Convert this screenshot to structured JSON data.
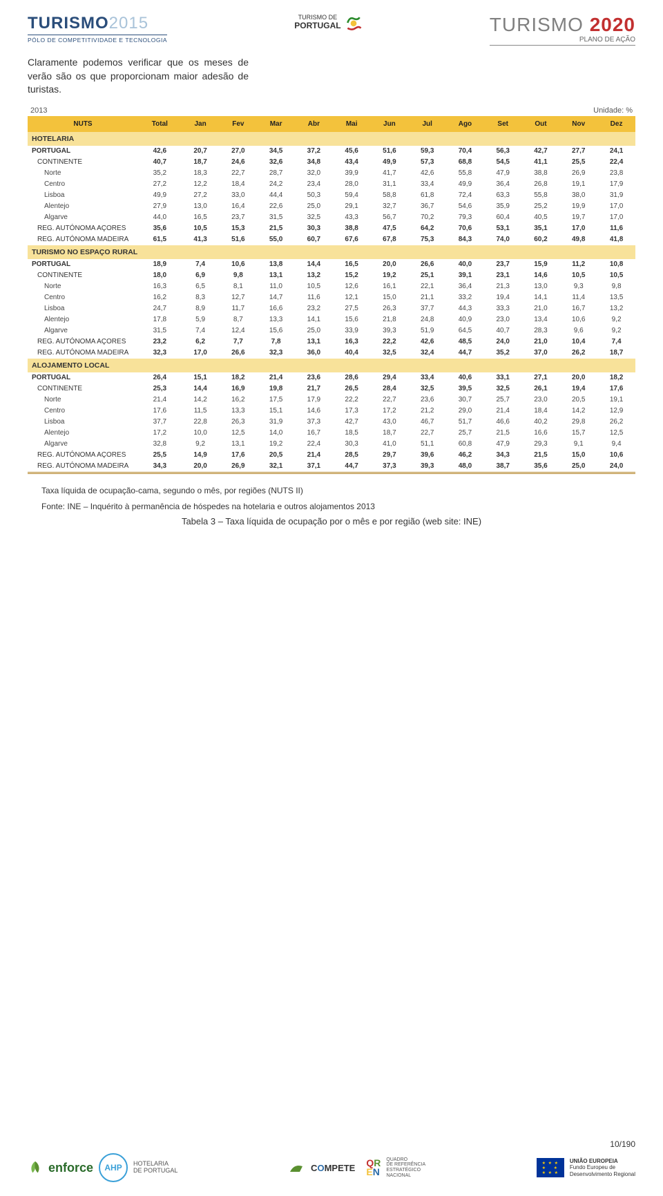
{
  "header": {
    "logo_left_a": "TURISMO",
    "logo_left_b": "2015",
    "logo_left_sub": "PÓLO DE COMPETITIVIDADE E TECNOLOGIA",
    "logo_center_a": "TURISMO DE",
    "logo_center_b": "PORTUGAL",
    "logo_right_a": "TURISMO ",
    "logo_right_b": "2020",
    "logo_right_sub": "PLANO DE AÇÃO"
  },
  "paragraph": "Claramente podemos verificar que os meses de verão são os que proporcionam maior adesão de turistas.",
  "table": {
    "year": "2013",
    "unit": "Unidade: %",
    "columns": [
      "NUTS",
      "Total",
      "Jan",
      "Fev",
      "Mar",
      "Abr",
      "Mai",
      "Jun",
      "Jul",
      "Ago",
      "Set",
      "Out",
      "Nov",
      "Dez"
    ],
    "sections": [
      {
        "title": "HOTELARIA",
        "rows": [
          {
            "label": "PORTUGAL",
            "bold": true,
            "vals": [
              "42,6",
              "20,7",
              "27,0",
              "34,5",
              "37,2",
              "45,6",
              "51,6",
              "59,3",
              "70,4",
              "56,3",
              "42,7",
              "27,7",
              "24,1"
            ]
          },
          {
            "label": "CONTINENTE",
            "bold": true,
            "indent": "group",
            "vals": [
              "40,7",
              "18,7",
              "24,6",
              "32,6",
              "34,8",
              "43,4",
              "49,9",
              "57,3",
              "68,8",
              "54,5",
              "41,1",
              "25,5",
              "22,4"
            ]
          },
          {
            "label": "Norte",
            "indent": "indent",
            "vals": [
              "35,2",
              "18,3",
              "22,7",
              "28,7",
              "32,0",
              "39,9",
              "41,7",
              "42,6",
              "55,8",
              "47,9",
              "38,8",
              "26,9",
              "23,8"
            ]
          },
          {
            "label": "Centro",
            "indent": "indent",
            "vals": [
              "27,2",
              "12,2",
              "18,4",
              "24,2",
              "23,4",
              "28,0",
              "31,1",
              "33,4",
              "49,9",
              "36,4",
              "26,8",
              "19,1",
              "17,9"
            ]
          },
          {
            "label": "Lisboa",
            "indent": "indent",
            "vals": [
              "49,9",
              "27,2",
              "33,0",
              "44,4",
              "50,3",
              "59,4",
              "58,8",
              "61,8",
              "72,4",
              "63,3",
              "55,8",
              "38,0",
              "31,9"
            ]
          },
          {
            "label": "Alentejo",
            "indent": "indent",
            "vals": [
              "27,9",
              "13,0",
              "16,4",
              "22,6",
              "25,0",
              "29,1",
              "32,7",
              "36,7",
              "54,6",
              "35,9",
              "25,2",
              "19,9",
              "17,0"
            ]
          },
          {
            "label": "Algarve",
            "indent": "indent",
            "vals": [
              "44,0",
              "16,5",
              "23,7",
              "31,5",
              "32,5",
              "43,3",
              "56,7",
              "70,2",
              "79,3",
              "60,4",
              "40,5",
              "19,7",
              "17,0"
            ]
          },
          {
            "label": "REG. AUTÓNOMA AÇORES",
            "bold": true,
            "indent": "group",
            "vals": [
              "35,6",
              "10,5",
              "15,3",
              "21,5",
              "30,3",
              "38,8",
              "47,5",
              "64,2",
              "70,6",
              "53,1",
              "35,1",
              "17,0",
              "11,6"
            ]
          },
          {
            "label": "REG. AUTÓNOMA MADEIRA",
            "bold": true,
            "indent": "group",
            "vals": [
              "61,5",
              "41,3",
              "51,6",
              "55,0",
              "60,7",
              "67,6",
              "67,8",
              "75,3",
              "84,3",
              "74,0",
              "60,2",
              "49,8",
              "41,8"
            ]
          }
        ]
      },
      {
        "title": "TURISMO NO ESPAÇO RURAL",
        "rows": [
          {
            "label": "PORTUGAL",
            "bold": true,
            "vals": [
              "18,9",
              "7,4",
              "10,6",
              "13,8",
              "14,4",
              "16,5",
              "20,0",
              "26,6",
              "40,0",
              "23,7",
              "15,9",
              "11,2",
              "10,8"
            ]
          },
          {
            "label": "CONTINENTE",
            "bold": true,
            "indent": "group",
            "vals": [
              "18,0",
              "6,9",
              "9,8",
              "13,1",
              "13,2",
              "15,2",
              "19,2",
              "25,1",
              "39,1",
              "23,1",
              "14,6",
              "10,5",
              "10,5"
            ]
          },
          {
            "label": "Norte",
            "indent": "indent",
            "vals": [
              "16,3",
              "6,5",
              "8,1",
              "11,0",
              "10,5",
              "12,6",
              "16,1",
              "22,1",
              "36,4",
              "21,3",
              "13,0",
              "9,3",
              "9,8"
            ]
          },
          {
            "label": "Centro",
            "indent": "indent",
            "vals": [
              "16,2",
              "8,3",
              "12,7",
              "14,7",
              "11,6",
              "12,1",
              "15,0",
              "21,1",
              "33,2",
              "19,4",
              "14,1",
              "11,4",
              "13,5"
            ]
          },
          {
            "label": "Lisboa",
            "indent": "indent",
            "vals": [
              "24,7",
              "8,9",
              "11,7",
              "16,6",
              "23,2",
              "27,5",
              "26,3",
              "37,7",
              "44,3",
              "33,3",
              "21,0",
              "16,7",
              "13,2"
            ]
          },
          {
            "label": "Alentejo",
            "indent": "indent",
            "vals": [
              "17,8",
              "5,9",
              "8,7",
              "13,3",
              "14,1",
              "15,6",
              "21,8",
              "24,8",
              "40,9",
              "23,0",
              "13,4",
              "10,6",
              "9,2"
            ]
          },
          {
            "label": "Algarve",
            "indent": "indent",
            "vals": [
              "31,5",
              "7,4",
              "12,4",
              "15,6",
              "25,0",
              "33,9",
              "39,3",
              "51,9",
              "64,5",
              "40,7",
              "28,3",
              "9,6",
              "9,2"
            ]
          },
          {
            "label": "REG. AUTÓNOMA AÇORES",
            "bold": true,
            "indent": "group",
            "vals": [
              "23,2",
              "6,2",
              "7,7",
              "7,8",
              "13,1",
              "16,3",
              "22,2",
              "42,6",
              "48,5",
              "24,0",
              "21,0",
              "10,4",
              "7,4"
            ]
          },
          {
            "label": "REG. AUTÓNOMA MADEIRA",
            "bold": true,
            "indent": "group",
            "vals": [
              "32,3",
              "17,0",
              "26,6",
              "32,3",
              "36,0",
              "40,4",
              "32,5",
              "32,4",
              "44,7",
              "35,2",
              "37,0",
              "26,2",
              "18,7"
            ]
          }
        ]
      },
      {
        "title": "ALOJAMENTO LOCAL",
        "rows": [
          {
            "label": "PORTUGAL",
            "bold": true,
            "vals": [
              "26,4",
              "15,1",
              "18,2",
              "21,4",
              "23,6",
              "28,6",
              "29,4",
              "33,4",
              "40,6",
              "33,1",
              "27,1",
              "20,0",
              "18,2"
            ]
          },
          {
            "label": "CONTINENTE",
            "bold": true,
            "indent": "group",
            "vals": [
              "25,3",
              "14,4",
              "16,9",
              "19,8",
              "21,7",
              "26,5",
              "28,4",
              "32,5",
              "39,5",
              "32,5",
              "26,1",
              "19,4",
              "17,6"
            ]
          },
          {
            "label": "Norte",
            "indent": "indent",
            "vals": [
              "21,4",
              "14,2",
              "16,2",
              "17,5",
              "17,9",
              "22,2",
              "22,7",
              "23,6",
              "30,7",
              "25,7",
              "23,0",
              "20,5",
              "19,1"
            ]
          },
          {
            "label": "Centro",
            "indent": "indent",
            "vals": [
              "17,6",
              "11,5",
              "13,3",
              "15,1",
              "14,6",
              "17,3",
              "17,2",
              "21,2",
              "29,0",
              "21,4",
              "18,4",
              "14,2",
              "12,9"
            ]
          },
          {
            "label": "Lisboa",
            "indent": "indent",
            "vals": [
              "37,7",
              "22,8",
              "26,3",
              "31,9",
              "37,3",
              "42,7",
              "43,0",
              "46,7",
              "51,7",
              "46,6",
              "40,2",
              "29,8",
              "26,2"
            ]
          },
          {
            "label": "Alentejo",
            "indent": "indent",
            "vals": [
              "17,2",
              "10,0",
              "12,5",
              "14,0",
              "16,7",
              "18,5",
              "18,7",
              "22,7",
              "25,7",
              "21,5",
              "16,6",
              "15,7",
              "12,5"
            ]
          },
          {
            "label": "Algarve",
            "indent": "indent",
            "vals": [
              "32,8",
              "9,2",
              "13,1",
              "19,2",
              "22,4",
              "30,3",
              "41,0",
              "51,1",
              "60,8",
              "47,9",
              "29,3",
              "9,1",
              "9,4"
            ]
          },
          {
            "label": "REG. AUTÓNOMA AÇORES",
            "bold": true,
            "indent": "group",
            "vals": [
              "25,5",
              "14,9",
              "17,6",
              "20,5",
              "21,4",
              "28,5",
              "29,7",
              "39,6",
              "46,2",
              "34,3",
              "21,5",
              "15,0",
              "10,6"
            ]
          },
          {
            "label": "REG. AUTÓNOMA MADEIRA",
            "bold": true,
            "indent": "group",
            "vals": [
              "34,3",
              "20,0",
              "26,9",
              "32,1",
              "37,1",
              "44,7",
              "37,3",
              "39,3",
              "48,0",
              "38,7",
              "35,6",
              "25,0",
              "24,0"
            ]
          }
        ]
      }
    ]
  },
  "caption1": "Taxa líquida de ocupação-cama, segundo o mês, por regiões (NUTS II)",
  "caption2": "Fonte: INE – Inquérito à permanência de hóspedes na hotelaria e outros alojamentos 2013",
  "tabela_label": "Tabela 3 – Taxa líquida de ocupação por o mês e por região (web site: INE)",
  "footer": {
    "pagenum": "10/190",
    "enforce": "enforce",
    "ahp": "AHP",
    "ahp_sub1": "HOTELARIA",
    "ahp_sub2": "DE PORTUGAL",
    "compete": "COMPETE",
    "qren1": "QUADRO",
    "qren2": "DE REFERÊNCIA",
    "qren3": "ESTRATÉGICO",
    "qren4": "NACIONAL",
    "eu1": "UNIÃO EUROPEIA",
    "eu2": "Fundo Europeu de",
    "eu3": "Desenvolvimento Regional"
  },
  "colors": {
    "header_bg": "#f3c23c",
    "section_bg": "#f8e29a",
    "turismo_blue": "#2a4d7a",
    "turismo_red": "#c23030"
  }
}
